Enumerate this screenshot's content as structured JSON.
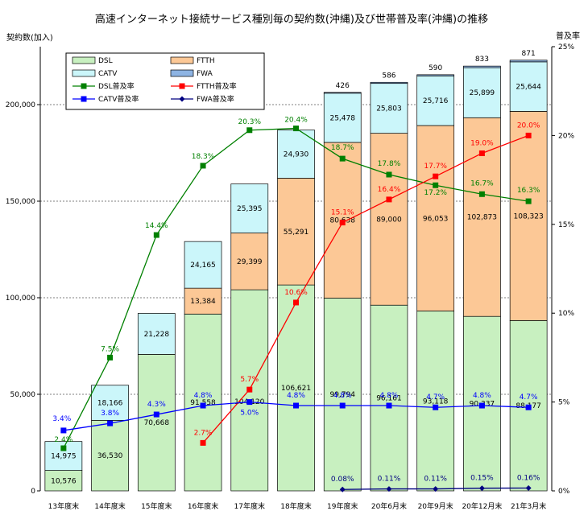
{
  "chart_data": {
    "type": "bar",
    "title": "高速インターネット接続サービス種別毎の契約数(沖縄)及び世帯普及率(沖縄)の推移",
    "ylabel_left": "契約数(加入)",
    "ylabel_right": "普及率",
    "ylim_left": [
      0,
      230000
    ],
    "ylim_right": [
      0,
      25
    ],
    "yticks_left": [
      "0",
      "50,000",
      "100,000",
      "150,000",
      "200,000"
    ],
    "yticks_left_values": [
      0,
      50000,
      100000,
      150000,
      200000
    ],
    "yticks_right": [
      "0%",
      "5%",
      "10%",
      "15%",
      "20%",
      "25%"
    ],
    "yticks_right_values": [
      0,
      5,
      10,
      15,
      20,
      25
    ],
    "legend_position": "top-left",
    "categories": [
      "13年度末",
      "14年度末",
      "15年度末",
      "16年度末",
      "17年度末",
      "18年度末",
      "19年度末",
      "20年6月末",
      "20年9月末",
      "20年12月末",
      "21年3月末"
    ],
    "bar_series": [
      {
        "name": "DSL",
        "color": "#c8f0c0",
        "values": [
          10576,
          36530,
          70668,
          91558,
          104120,
          106621,
          99794,
          96161,
          93118,
          90337,
          88177
        ],
        "labels": [
          "10,576",
          "36,530",
          "70,668",
          "91,558",
          "104,120",
          "106,621",
          "99,794",
          "96,161",
          "93,118",
          "90,337",
          "88,177"
        ]
      },
      {
        "name": "FTTH",
        "color": "#fcc896",
        "values": [
          0,
          0,
          0,
          13384,
          29399,
          55291,
          80638,
          89000,
          96053,
          102873,
          108323
        ],
        "labels": [
          "",
          "",
          "",
          "13,384",
          "29,399",
          "55,291",
          "80,638",
          "89,000",
          "96,053",
          "102,873",
          "108,323"
        ]
      },
      {
        "name": "CATV",
        "color": "#cbf6fa",
        "values": [
          14975,
          18166,
          21228,
          24165,
          25395,
          24930,
          25478,
          25803,
          25716,
          25899,
          25644
        ],
        "labels": [
          "14,975",
          "18,166",
          "21,228",
          "24,165",
          "25,395",
          "24,930",
          "25,478",
          "25,803",
          "25,716",
          "25,899",
          "25,644"
        ]
      },
      {
        "name": "FWA",
        "color": "#8eb4e3",
        "values": [
          0,
          0,
          0,
          0,
          0,
          0,
          426,
          586,
          590,
          833,
          871
        ],
        "labels": [
          "",
          "",
          "",
          "",
          "",
          "",
          "426",
          "586",
          "590",
          "833",
          "871"
        ]
      }
    ],
    "line_series": [
      {
        "name": "DSL普及率",
        "color": "#008000",
        "marker": "square",
        "values": [
          2.4,
          7.5,
          14.4,
          18.3,
          20.3,
          20.4,
          18.7,
          17.8,
          17.2,
          16.7,
          16.3
        ],
        "labels": [
          "2.4%",
          "7.5%",
          "14.4%",
          "18.3%",
          "20.3%",
          "20.4%",
          "18.7%",
          "17.8%",
          "17.2%",
          "16.7%",
          "16.3%"
        ]
      },
      {
        "name": "FTTH普及率",
        "color": "#ff0000",
        "marker": "square",
        "values": [
          null,
          null,
          null,
          2.7,
          5.7,
          10.6,
          15.1,
          16.4,
          17.7,
          19.0,
          20.0
        ],
        "labels": [
          "",
          "",
          "",
          "2.7%",
          "5.7%",
          "10.6%",
          "15.1%",
          "16.4%",
          "17.7%",
          "19.0%",
          "20.0%"
        ]
      },
      {
        "name": "CATV普及率",
        "color": "#0000ff",
        "marker": "square",
        "values": [
          3.4,
          3.8,
          4.3,
          4.8,
          5.0,
          4.8,
          4.8,
          4.8,
          4.7,
          4.8,
          4.7
        ],
        "labels": [
          "3.4%",
          "3.8%",
          "4.3%",
          "4.8%",
          "5.0%",
          "4.8%",
          "4.8%",
          "4.8%",
          "4.7%",
          "4.8%",
          "4.7%"
        ]
      },
      {
        "name": "FWA普及率",
        "color": "#000080",
        "marker": "diamond",
        "values": [
          null,
          null,
          null,
          null,
          null,
          null,
          0.08,
          0.11,
          0.11,
          0.15,
          0.16
        ],
        "labels": [
          "",
          "",
          "",
          "",
          "",
          "",
          "0.08%",
          "0.11%",
          "0.11%",
          "0.15%",
          "0.16%"
        ]
      }
    ]
  }
}
